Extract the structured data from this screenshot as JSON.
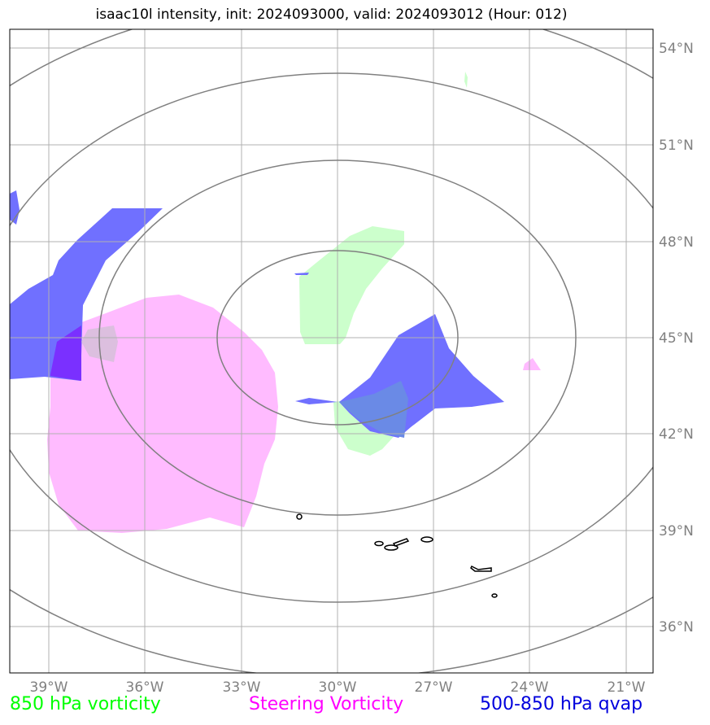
{
  "title": "isaac10l intensity, init: 2024093000, valid: 2024093012 (Hour: 012)",
  "map": {
    "lon_ticks": [
      "39°W",
      "36°W",
      "33°W",
      "30°W",
      "27°W",
      "24°W",
      "21°W"
    ],
    "lat_ticks": [
      "54°N",
      "51°N",
      "48°N",
      "45°N",
      "42°N",
      "39°N",
      "36°N"
    ]
  },
  "legend": [
    {
      "label": "850 hPa vorticity",
      "color": "#00ff00"
    },
    {
      "label": "Steering Vorticity",
      "color": "#ff00ff"
    },
    {
      "label": "500-850 hPa qvap",
      "color": "#0000dd"
    }
  ],
  "colors": {
    "vorticity_850": "#ccffcc",
    "steering_vorticity": "#ffbbff",
    "qvap": "#7070ff",
    "range_rings": "#808080",
    "coastline": "#000000",
    "grid": "#b0b0b0"
  }
}
